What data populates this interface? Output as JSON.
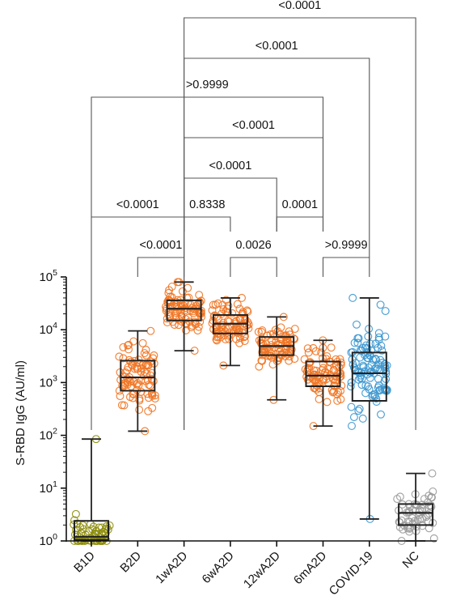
{
  "chart_data": {
    "type": "box",
    "ylabel": "S-RBD IgG (AU/ml)",
    "yscale": "log",
    "ylim": [
      1,
      100000
    ],
    "yticks": [
      {
        "value": 1,
        "base": "10",
        "exp": "0"
      },
      {
        "value": 10,
        "base": "10",
        "exp": "1"
      },
      {
        "value": 100,
        "base": "10",
        "exp": "2"
      },
      {
        "value": 1000,
        "base": "10",
        "exp": "3"
      },
      {
        "value": 10000,
        "base": "10",
        "exp": "4"
      },
      {
        "value": 100000,
        "base": "10",
        "exp": "5"
      }
    ],
    "categories": [
      "B1D",
      "B2D",
      "1wA2D",
      "6wA2D",
      "12wA2D",
      "6mA2D",
      "COVID-19",
      "NC"
    ],
    "colors": [
      "#8c8c0a",
      "#ef7422",
      "#ef7422",
      "#ef7422",
      "#ef7422",
      "#ef7422",
      "#3a96cf",
      "#9a9a9a"
    ],
    "boxes": [
      {
        "min": 1.0,
        "q1": 1.05,
        "median": 1.2,
        "q3": 2.4,
        "max": 85,
        "n": 60
      },
      {
        "min": 120,
        "q1": 700,
        "median": 1250,
        "q3": 2600,
        "max": 9500,
        "n": 90
      },
      {
        "min": 4000,
        "q1": 15000,
        "median": 25000,
        "q3": 36000,
        "max": 80000,
        "n": 90
      },
      {
        "min": 2100,
        "q1": 8500,
        "median": 13000,
        "q3": 19000,
        "max": 40000,
        "n": 90
      },
      {
        "min": 470,
        "q1": 3300,
        "median": 4900,
        "q3": 7300,
        "max": 17500,
        "n": 90
      },
      {
        "min": 150,
        "q1": 850,
        "median": 1350,
        "q3": 2500,
        "max": 6300,
        "n": 90
      },
      {
        "min": 2.6,
        "q1": 450,
        "median": 1500,
        "q3": 3700,
        "max": 40000,
        "n": 110
      },
      {
        "min": 1.0,
        "q1": 2.0,
        "median": 3.4,
        "q3": 5.0,
        "max": 19,
        "n": 60
      }
    ],
    "comparisons": [
      {
        "from": "B2D",
        "to": "1wA2D",
        "label": "<0.0001"
      },
      {
        "from": "6wA2D",
        "to": "12wA2D",
        "label": "0.0026"
      },
      {
        "from": "6mA2D",
        "to": "COVID-19",
        "label": ">0.9999"
      },
      {
        "from": "B1D",
        "to": "1wA2D",
        "label": "<0.0001"
      },
      {
        "from": "1wA2D",
        "to": "6wA2D",
        "label": "0.8338"
      },
      {
        "from": "12wA2D",
        "to": "6mA2D",
        "label": "0.0001"
      },
      {
        "from": "1wA2D",
        "to": "12wA2D",
        "label": "<0.0001"
      },
      {
        "from": "1wA2D",
        "to": "6mA2D",
        "label": "<0.0001"
      },
      {
        "from": "B1D",
        "to": "6mA2D",
        "label": ">0.9999"
      },
      {
        "from": "1wA2D",
        "to": "COVID-19",
        "label": "<0.0001"
      },
      {
        "from": "1wA2D",
        "to": "NC",
        "label": "<0.0001"
      }
    ]
  }
}
